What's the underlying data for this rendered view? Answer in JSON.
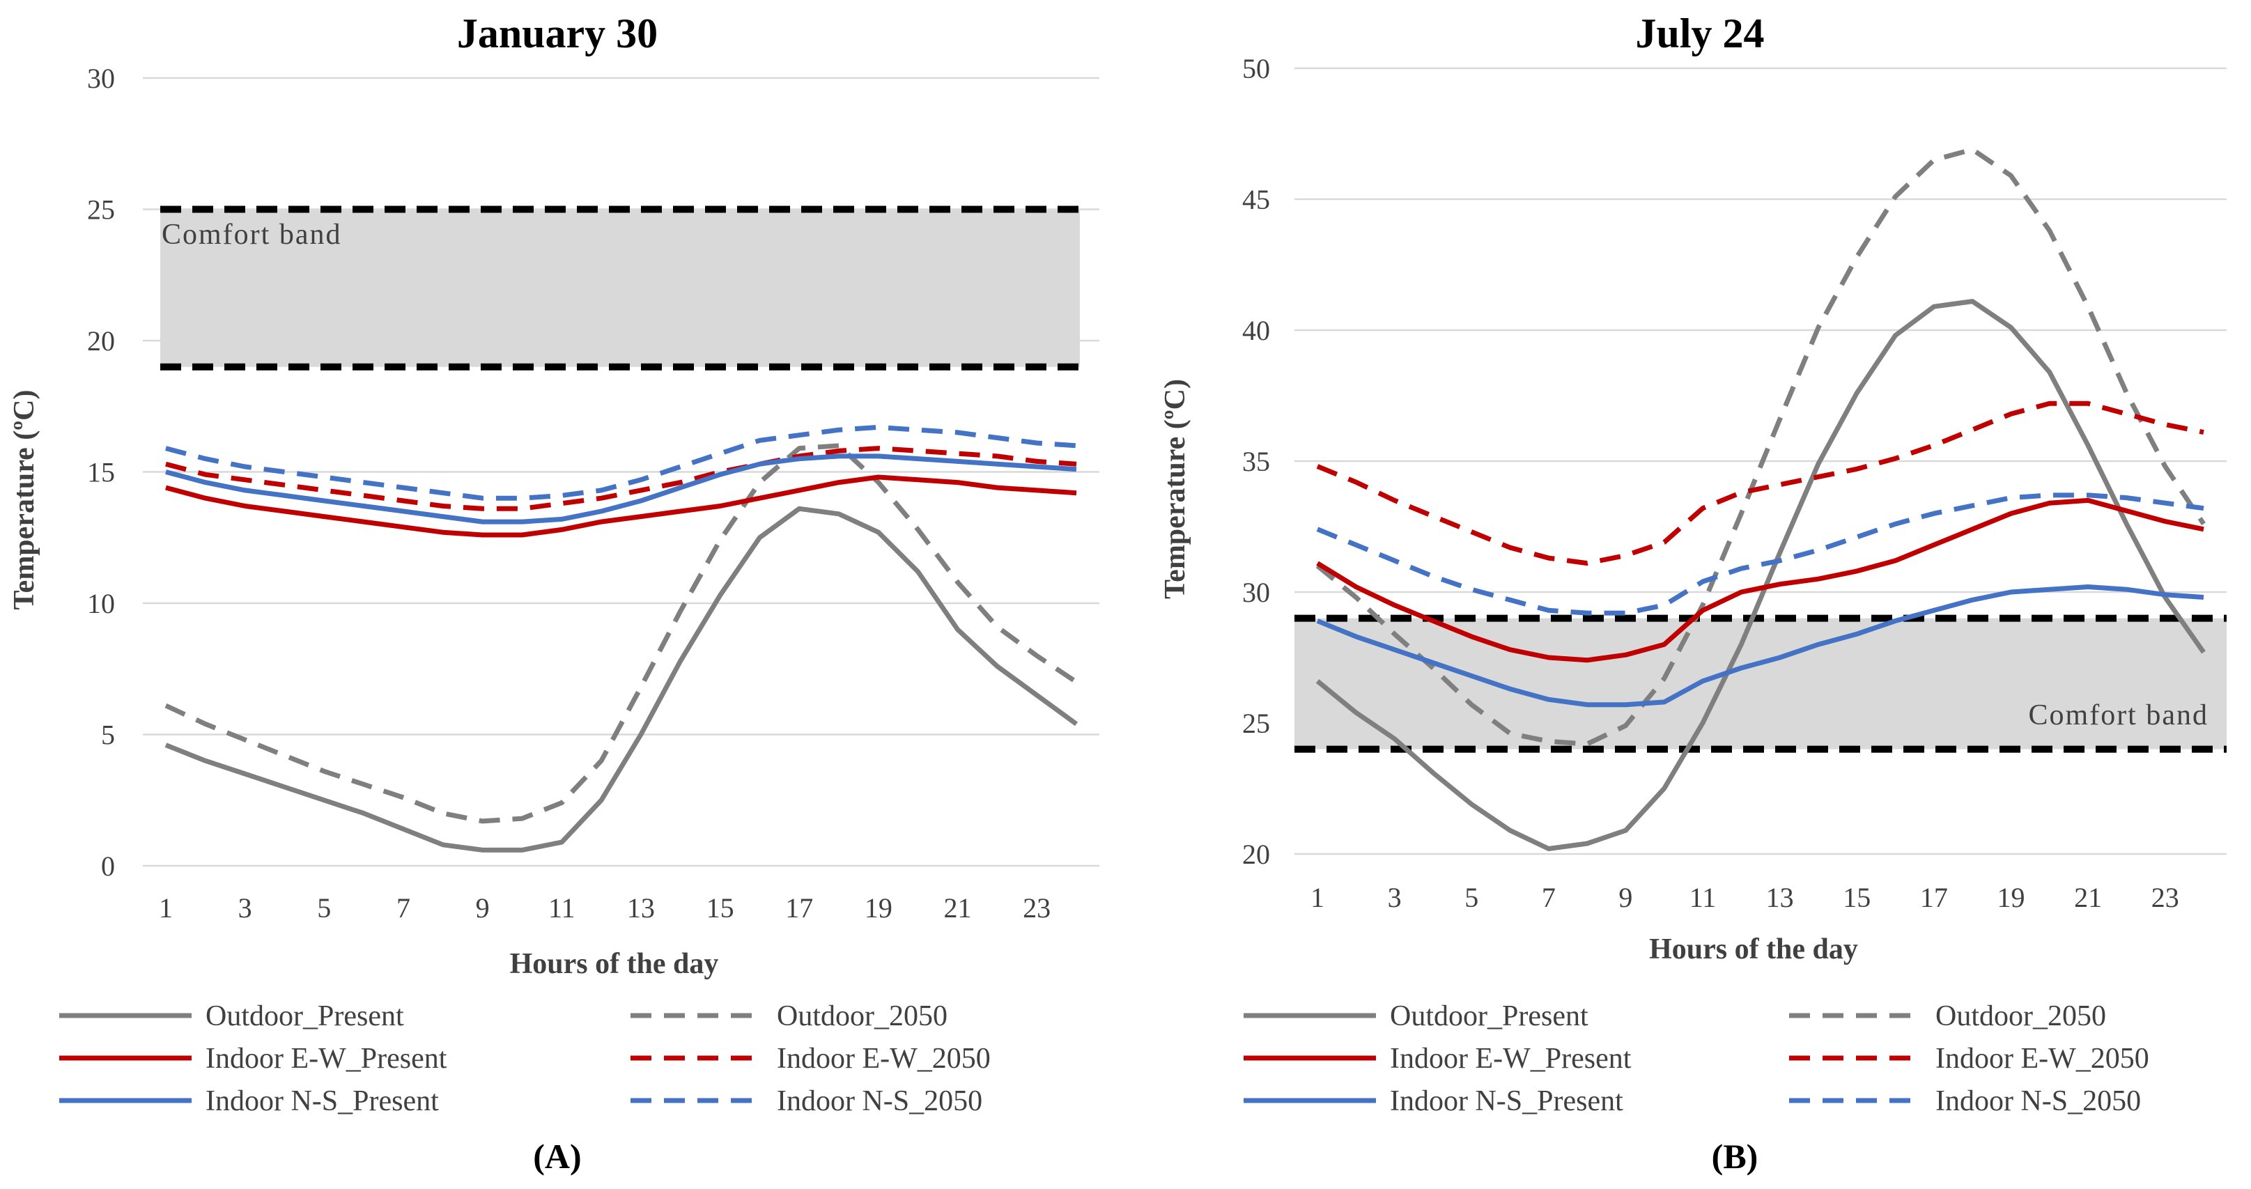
{
  "chart_data": [
    {
      "panel_label": "(A)",
      "type": "line",
      "title": "January 30",
      "xlabel": "Hours of the day",
      "ylabel": "Temperature (ºC)",
      "ylim": [
        0,
        30
      ],
      "yticks": [
        0,
        5,
        10,
        15,
        20,
        25,
        30
      ],
      "xlim": [
        1,
        24
      ],
      "xticks": [
        1,
        3,
        5,
        7,
        9,
        11,
        13,
        15,
        17,
        19,
        21,
        23
      ],
      "grid": "horizontal",
      "x": [
        1,
        2,
        3,
        4,
        5,
        6,
        7,
        8,
        9,
        10,
        11,
        12,
        13,
        14,
        15,
        16,
        17,
        18,
        19,
        20,
        21,
        22,
        23,
        24
      ],
      "comfort_band": {
        "label": "Comfort band",
        "lower": 19,
        "upper": 25
      },
      "series": [
        {
          "name": "Outdoor_Present",
          "color": "#7f7f7f",
          "dash": "solid",
          "values": [
            4.6,
            4.0,
            3.5,
            3.0,
            2.5,
            2.0,
            1.4,
            0.8,
            0.6,
            0.6,
            0.9,
            2.5,
            5.0,
            7.8,
            10.3,
            12.5,
            13.6,
            13.4,
            12.7,
            11.2,
            9.0,
            7.6,
            6.5,
            5.4
          ]
        },
        {
          "name": "Outdoor_2050",
          "color": "#7f7f7f",
          "dash": "dashed",
          "values": [
            6.1,
            5.4,
            4.8,
            4.2,
            3.6,
            3.1,
            2.6,
            2.0,
            1.7,
            1.8,
            2.4,
            4.0,
            6.8,
            9.7,
            12.4,
            14.6,
            15.9,
            16.0,
            14.6,
            12.8,
            10.8,
            9.1,
            8.0,
            7.0
          ]
        },
        {
          "name": "Indoor E-W_Present",
          "color": "#c00000",
          "dash": "solid",
          "values": [
            14.4,
            14.0,
            13.7,
            13.5,
            13.3,
            13.1,
            12.9,
            12.7,
            12.6,
            12.6,
            12.8,
            13.1,
            13.3,
            13.5,
            13.7,
            14.0,
            14.3,
            14.6,
            14.8,
            14.7,
            14.6,
            14.4,
            14.3,
            14.2
          ]
        },
        {
          "name": "Indoor E-W_2050",
          "color": "#c00000",
          "dash": "dashed",
          "values": [
            15.3,
            14.9,
            14.7,
            14.5,
            14.3,
            14.1,
            13.9,
            13.7,
            13.6,
            13.6,
            13.8,
            14.0,
            14.3,
            14.6,
            15.0,
            15.3,
            15.6,
            15.8,
            15.9,
            15.8,
            15.7,
            15.6,
            15.4,
            15.3
          ]
        },
        {
          "name": "Indoor N-S_Present",
          "color": "#4472c4",
          "dash": "solid",
          "values": [
            15.0,
            14.6,
            14.3,
            14.1,
            13.9,
            13.7,
            13.5,
            13.3,
            13.1,
            13.1,
            13.2,
            13.5,
            13.9,
            14.4,
            14.9,
            15.3,
            15.5,
            15.6,
            15.6,
            15.5,
            15.4,
            15.3,
            15.2,
            15.1
          ]
        },
        {
          "name": "Indoor N-S_2050",
          "color": "#4472c4",
          "dash": "dashed",
          "values": [
            15.9,
            15.5,
            15.2,
            15.0,
            14.8,
            14.6,
            14.4,
            14.2,
            14.0,
            14.0,
            14.1,
            14.3,
            14.7,
            15.2,
            15.7,
            16.2,
            16.4,
            16.6,
            16.7,
            16.6,
            16.5,
            16.3,
            16.1,
            16.0
          ]
        }
      ]
    },
    {
      "panel_label": "(B)",
      "type": "line",
      "title": "July 24",
      "xlabel": "Hours of the day",
      "ylabel": "Temperature (ºC)",
      "ylim": [
        20,
        50
      ],
      "yticks": [
        20,
        25,
        30,
        35,
        40,
        45,
        50
      ],
      "xlim": [
        1,
        24
      ],
      "xticks": [
        1,
        3,
        5,
        7,
        9,
        11,
        13,
        15,
        17,
        19,
        21,
        23
      ],
      "grid": "horizontal",
      "x": [
        1,
        2,
        3,
        4,
        5,
        6,
        7,
        8,
        9,
        10,
        11,
        12,
        13,
        14,
        15,
        16,
        17,
        18,
        19,
        20,
        21,
        22,
        23,
        24
      ],
      "comfort_band": {
        "label": "Comfort band",
        "lower": 24,
        "upper": 29
      },
      "series": [
        {
          "name": "Outdoor_Present",
          "color": "#7f7f7f",
          "dash": "solid",
          "values": [
            26.6,
            25.4,
            24.4,
            23.1,
            21.9,
            20.9,
            20.2,
            20.4,
            20.9,
            22.5,
            25.0,
            28.0,
            31.5,
            34.9,
            37.6,
            39.8,
            40.9,
            41.1,
            40.1,
            38.4,
            35.6,
            32.6,
            29.8,
            27.7
          ]
        },
        {
          "name": "Outdoor_2050",
          "color": "#7f7f7f",
          "dash": "dashed",
          "values": [
            31.0,
            29.8,
            28.4,
            27.1,
            25.7,
            24.6,
            24.3,
            24.2,
            24.9,
            26.7,
            29.5,
            33.0,
            36.6,
            40.1,
            42.8,
            45.1,
            46.5,
            46.9,
            45.9,
            43.8,
            40.9,
            37.6,
            34.8,
            32.6
          ]
        },
        {
          "name": "Indoor E-W_Present",
          "color": "#c00000",
          "dash": "solid",
          "values": [
            31.1,
            30.2,
            29.5,
            28.9,
            28.3,
            27.8,
            27.5,
            27.4,
            27.6,
            28.0,
            29.3,
            30.0,
            30.3,
            30.5,
            30.8,
            31.2,
            31.8,
            32.4,
            33.0,
            33.4,
            33.5,
            33.1,
            32.7,
            32.4
          ]
        },
        {
          "name": "Indoor E-W_2050",
          "color": "#c00000",
          "dash": "dashed",
          "values": [
            34.8,
            34.2,
            33.5,
            32.9,
            32.3,
            31.7,
            31.3,
            31.1,
            31.4,
            31.9,
            33.2,
            33.8,
            34.1,
            34.4,
            34.7,
            35.1,
            35.6,
            36.2,
            36.8,
            37.2,
            37.2,
            36.8,
            36.4,
            36.1
          ]
        },
        {
          "name": "Indoor N-S_Present",
          "color": "#4472c4",
          "dash": "solid",
          "values": [
            28.9,
            28.3,
            27.8,
            27.3,
            26.8,
            26.3,
            25.9,
            25.7,
            25.7,
            25.8,
            26.6,
            27.1,
            27.5,
            28.0,
            28.4,
            28.9,
            29.3,
            29.7,
            30.0,
            30.1,
            30.2,
            30.1,
            29.9,
            29.8
          ]
        },
        {
          "name": "Indoor N-S_2050",
          "color": "#4472c4",
          "dash": "dashed",
          "values": [
            32.4,
            31.8,
            31.2,
            30.6,
            30.1,
            29.7,
            29.3,
            29.2,
            29.2,
            29.5,
            30.4,
            30.9,
            31.2,
            31.6,
            32.1,
            32.6,
            33.0,
            33.3,
            33.6,
            33.7,
            33.7,
            33.6,
            33.4,
            33.2
          ]
        }
      ]
    }
  ]
}
